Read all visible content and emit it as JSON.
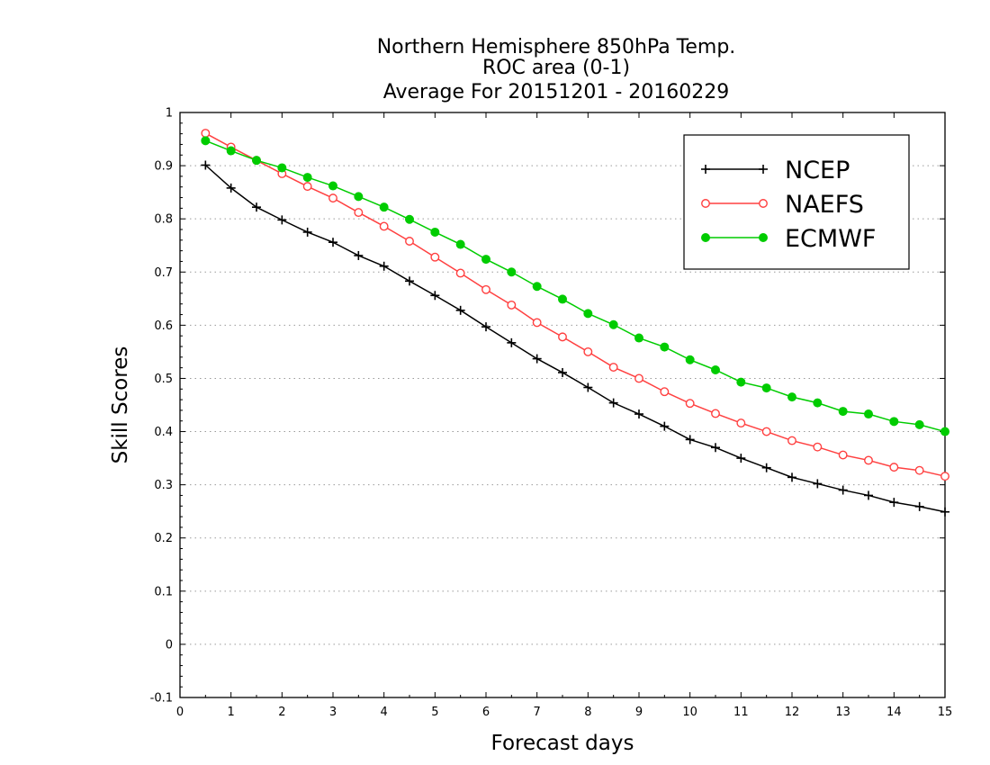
{
  "chart_data": {
    "type": "line",
    "title": [
      "Northern Hemisphere 850hPa Temp.",
      "ROC area (0-1)",
      "Average For 20151201 - 20160229"
    ],
    "xlabel": "Forecast days",
    "ylabel": "Skill Scores",
    "xlim": [
      0,
      15
    ],
    "ylim": [
      -0.1,
      1
    ],
    "xticks": [
      0,
      1,
      2,
      3,
      4,
      5,
      6,
      7,
      8,
      9,
      10,
      11,
      12,
      13,
      14,
      15
    ],
    "yticks": [
      -0.1,
      0,
      0.1,
      0.2,
      0.3,
      0.4,
      0.5,
      0.6,
      0.7,
      0.8,
      0.9,
      1
    ],
    "ytick_labels": [
      "-0.1",
      "0",
      "0.1",
      "0.2",
      "0.3",
      "0.4",
      "0.5",
      "0.6",
      "0.7",
      "0.8",
      "0.9",
      "1"
    ],
    "grid": "horizontal-dotted",
    "legend_position": "top-right",
    "x": [
      0.5,
      1,
      1.5,
      2,
      2.5,
      3,
      3.5,
      4,
      4.5,
      5,
      5.5,
      6,
      6.5,
      7,
      7.5,
      8,
      8.5,
      9,
      9.5,
      10,
      10.5,
      11,
      11.5,
      12,
      12.5,
      13,
      13.5,
      14,
      14.5,
      15
    ],
    "series": [
      {
        "name": "NCEP",
        "color": "#000000",
        "marker": "plus",
        "values": [
          0.901,
          0.858,
          0.822,
          0.798,
          0.775,
          0.756,
          0.731,
          0.711,
          0.683,
          0.656,
          0.628,
          0.597,
          0.567,
          0.537,
          0.511,
          0.483,
          0.454,
          0.433,
          0.41,
          0.385,
          0.37,
          0.35,
          0.332,
          0.314,
          0.302,
          0.29,
          0.28,
          0.267,
          0.259,
          0.249
        ]
      },
      {
        "name": "NAEFS",
        "color": "#ff4040",
        "marker": "open-circle",
        "values": [
          0.961,
          0.935,
          0.91,
          0.885,
          0.861,
          0.839,
          0.812,
          0.786,
          0.758,
          0.728,
          0.698,
          0.667,
          0.638,
          0.605,
          0.578,
          0.55,
          0.521,
          0.5,
          0.475,
          0.453,
          0.434,
          0.416,
          0.4,
          0.383,
          0.371,
          0.356,
          0.346,
          0.333,
          0.327,
          0.316
        ]
      },
      {
        "name": "ECMWF",
        "color": "#00cc00",
        "marker": "filled-circle",
        "values": [
          0.947,
          0.928,
          0.91,
          0.896,
          0.878,
          0.862,
          0.842,
          0.822,
          0.799,
          0.775,
          0.752,
          0.724,
          0.7,
          0.673,
          0.649,
          0.622,
          0.601,
          0.576,
          0.559,
          0.535,
          0.516,
          0.493,
          0.482,
          0.465,
          0.454,
          0.438,
          0.433,
          0.419,
          0.413,
          0.4
        ]
      }
    ]
  }
}
